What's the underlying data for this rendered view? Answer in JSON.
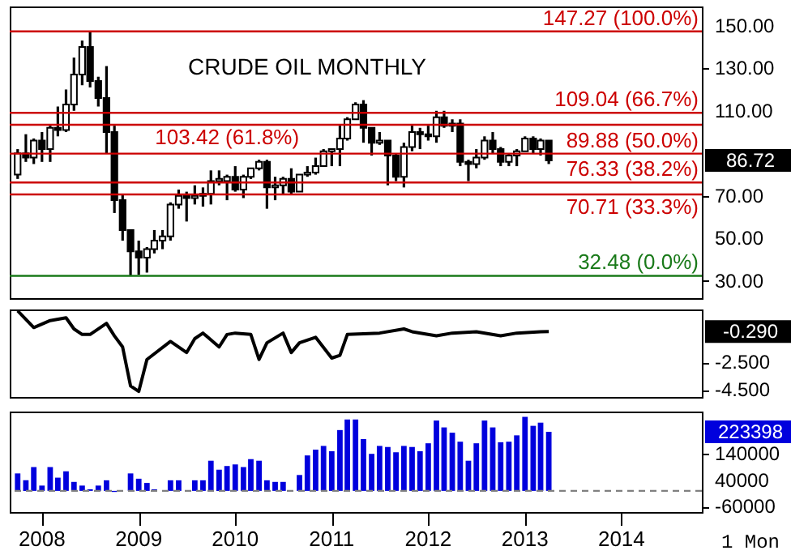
{
  "chart_data": [
    {
      "type": "candlestick",
      "title": "CRUDE OIL MONTHLY",
      "color": "#000000",
      "x": [
        "2007-10",
        "2007-11",
        "2007-12",
        "2008-01",
        "2008-02",
        "2008-03",
        "2008-04",
        "2008-05",
        "2008-06",
        "2008-07",
        "2008-08",
        "2008-09",
        "2008-10",
        "2008-11",
        "2008-12",
        "2009-01",
        "2009-02",
        "2009-03",
        "2009-04",
        "2009-05",
        "2009-06",
        "2009-07",
        "2009-08",
        "2009-09",
        "2009-10",
        "2009-11",
        "2009-12",
        "2010-01",
        "2010-02",
        "2010-03",
        "2010-04",
        "2010-05",
        "2010-06",
        "2010-07",
        "2010-08",
        "2010-09",
        "2010-10",
        "2010-11",
        "2010-12",
        "2011-01",
        "2011-02",
        "2011-03",
        "2011-04",
        "2011-05",
        "2011-06",
        "2011-07",
        "2011-08",
        "2011-09",
        "2011-10",
        "2011-11",
        "2011-12",
        "2012-01",
        "2012-02",
        "2012-03",
        "2012-04",
        "2012-05",
        "2012-06",
        "2012-07",
        "2012-08",
        "2012-09",
        "2012-10",
        "2012-11",
        "2012-12",
        "2013-01",
        "2013-02",
        "2013-03",
        "2013-04"
      ],
      "ohlc": [
        [
          80,
          92,
          78,
          90
        ],
        [
          90,
          99,
          86,
          88
        ],
        [
          88,
          97,
          85,
          96
        ],
        [
          96,
          100,
          86,
          92
        ],
        [
          92,
          103,
          86,
          102
        ],
        [
          102,
          112,
          98,
          101
        ],
        [
          101,
          120,
          100,
          113
        ],
        [
          113,
          135,
          110,
          127
        ],
        [
          127,
          143,
          122,
          140
        ],
        [
          140,
          147.27,
          121,
          124
        ],
        [
          124,
          126,
          112,
          116
        ],
        [
          116,
          131,
          90,
          100
        ],
        [
          100,
          103,
          62,
          68
        ],
        [
          68,
          71,
          49,
          54
        ],
        [
          54,
          54,
          32.48,
          44
        ],
        [
          44,
          49,
          33,
          41
        ],
        [
          41,
          46,
          34,
          45
        ],
        [
          45,
          54,
          43,
          49
        ],
        [
          49,
          54,
          45,
          51
        ],
        [
          51,
          67,
          49,
          66
        ],
        [
          66,
          73,
          64,
          70
        ],
        [
          70,
          72,
          58,
          69
        ],
        [
          69,
          75,
          66,
          70
        ],
        [
          70,
          74,
          65,
          71
        ],
        [
          71,
          82,
          66,
          77
        ],
        [
          77,
          82,
          75,
          78
        ],
        [
          77,
          80,
          68,
          79
        ],
        [
          79,
          84,
          72,
          73
        ],
        [
          73,
          80,
          69,
          79
        ],
        [
          79,
          83,
          78,
          83
        ],
        [
          83,
          87,
          82,
          86
        ],
        [
          86,
          87,
          64,
          74
        ],
        [
          74,
          79,
          68,
          75
        ],
        [
          75,
          79,
          71,
          78
        ],
        [
          78,
          83,
          71,
          72
        ],
        [
          72,
          80,
          72,
          80
        ],
        [
          80,
          84,
          79,
          81
        ],
        [
          81,
          88,
          80,
          84
        ],
        [
          84,
          92,
          84,
          91
        ],
        [
          91,
          92,
          84,
          92
        ],
        [
          92,
          103,
          84,
          97
        ],
        [
          97,
          107,
          96,
          106
        ],
        [
          106,
          114,
          106,
          113
        ],
        [
          113,
          115,
          95,
          102
        ],
        [
          102,
          102,
          89,
          95
        ],
        [
          95,
          100,
          94,
          96
        ],
        [
          96,
          96,
          75,
          89
        ],
        [
          89,
          90,
          77,
          79
        ],
        [
          79,
          95,
          74,
          93
        ],
        [
          93,
          103,
          91,
          100
        ],
        [
          100,
          102,
          92,
          99
        ],
        [
          99,
          103,
          96,
          98
        ],
        [
          98,
          110,
          95,
          107
        ],
        [
          107,
          110,
          102,
          103
        ],
        [
          103,
          106,
          100,
          104
        ],
        [
          104,
          106,
          84,
          86
        ],
        [
          86,
          87,
          77,
          85
        ],
        [
          85,
          92,
          83,
          88
        ],
        [
          88,
          98,
          87,
          96
        ],
        [
          96,
          100,
          90,
          92
        ],
        [
          92,
          93,
          84,
          86
        ],
        [
          86,
          90,
          84,
          89
        ],
        [
          89,
          92,
          84,
          91
        ],
        [
          91,
          98,
          91,
          97
        ],
        [
          97,
          98,
          90,
          92
        ],
        [
          92,
          97,
          89,
          96
        ],
        [
          96,
          96,
          85,
          86.72
        ]
      ],
      "xlim": [
        "2007-09",
        "2014-11"
      ],
      "xticks": [
        "2008",
        "2009",
        "2010",
        "2011",
        "2012",
        "2013",
        "2014"
      ],
      "ylim": [
        22,
        159
      ],
      "yticks": [
        {
          "value": 30,
          "label": "30.00"
        },
        {
          "value": 50,
          "label": "50.00"
        },
        {
          "value": 70,
          "label": "70.00"
        },
        {
          "value": 110,
          "label": "110.00"
        },
        {
          "value": 130,
          "label": "130.00"
        },
        {
          "value": 150,
          "label": "150.00"
        }
      ],
      "ref_lines": [
        {
          "axis": "y",
          "value": 147.27,
          "label": "147.27 (100.0%)",
          "color": "#cc0000"
        },
        {
          "axis": "y",
          "value": 109.04,
          "label": "109.04 (66.7%)",
          "color": "#cc0000"
        },
        {
          "axis": "y",
          "value": 103.42,
          "label": "103.42 (61.8%)",
          "color": "#cc0000"
        },
        {
          "axis": "y",
          "value": 89.88,
          "label": "89.88 (50.0%)",
          "color": "#cc0000"
        },
        {
          "axis": "y",
          "value": 76.33,
          "label": "76.33 (38.2%)",
          "color": "#cc0000"
        },
        {
          "axis": "y",
          "value": 70.71,
          "label": "70.71 (33.3%)",
          "color": "#cc0000"
        },
        {
          "axis": "y",
          "value": 32.48,
          "label": "32.48 (0.0%)",
          "color": "#1a7a1a"
        }
      ],
      "annotations": [
        "86.72"
      ],
      "tick_labels": "y",
      "grid": false
    },
    {
      "type": "line",
      "color": "#000000",
      "marker": "none",
      "line_style": "solid",
      "x": [
        "2007-10",
        "2007-12",
        "2008-02",
        "2008-04",
        "2008-05",
        "2008-06",
        "2008-07",
        "2008-09",
        "2008-10",
        "2008-11",
        "2008-12",
        "2009-01",
        "2009-02",
        "2009-05",
        "2009-07",
        "2009-08",
        "2009-09",
        "2009-11",
        "2009-12",
        "2010-01",
        "2010-03",
        "2010-04",
        "2010-05",
        "2010-07",
        "2010-08",
        "2010-09",
        "2010-11",
        "2011-01",
        "2011-02",
        "2011-03",
        "2011-07",
        "2011-10",
        "2011-11",
        "2012-02",
        "2012-04",
        "2012-07",
        "2012-10",
        "2012-12",
        "2013-03",
        "2013-04"
      ],
      "values": [
        1.2,
        0.0,
        0.5,
        0.7,
        -0.1,
        -0.5,
        -0.5,
        0.3,
        -0.6,
        -1.4,
        -4.2,
        -4.6,
        -2.3,
        -1.0,
        -1.8,
        -0.8,
        -0.4,
        -1.4,
        -0.5,
        -0.4,
        -0.5,
        -2.3,
        -1.1,
        -0.4,
        -1.8,
        -1.1,
        -0.7,
        -2.2,
        -2.0,
        -0.5,
        -0.4,
        -0.1,
        -0.3,
        -0.6,
        -0.4,
        -0.3,
        -0.6,
        -0.4,
        -0.3,
        -0.29
      ],
      "xlim": [
        "2007-09",
        "2014-11"
      ],
      "xticks": [
        "2008",
        "2009",
        "2010",
        "2011",
        "2012",
        "2013",
        "2014"
      ],
      "ylim": [
        -5.0,
        1.3
      ],
      "yticks": [
        {
          "value": -4.5,
          "label": "-4.500"
        },
        {
          "value": -2.5,
          "label": "-2.500"
        }
      ],
      "annotations": [
        "-0.290"
      ],
      "tick_labels": "y",
      "grid": false
    },
    {
      "type": "bar",
      "color": "#0000dd",
      "x": [
        "2007-10",
        "2007-11",
        "2007-12",
        "2008-01",
        "2008-02",
        "2008-03",
        "2008-04",
        "2008-05",
        "2008-06",
        "2008-07",
        "2008-08",
        "2008-09",
        "2008-10",
        "2008-11",
        "2008-12",
        "2009-01",
        "2009-02",
        "2009-03",
        "2009-04",
        "2009-05",
        "2009-06",
        "2009-07",
        "2009-08",
        "2009-09",
        "2009-10",
        "2009-11",
        "2009-12",
        "2010-01",
        "2010-02",
        "2010-03",
        "2010-04",
        "2010-05",
        "2010-06",
        "2010-07",
        "2010-08",
        "2010-09",
        "2010-10",
        "2010-11",
        "2010-12",
        "2011-01",
        "2011-02",
        "2011-03",
        "2011-04",
        "2011-05",
        "2011-06",
        "2011-07",
        "2011-08",
        "2011-09",
        "2011-10",
        "2011-11",
        "2011-12",
        "2012-01",
        "2012-02",
        "2012-03",
        "2012-04",
        "2012-05",
        "2012-06",
        "2012-07",
        "2012-08",
        "2012-09",
        "2012-10",
        "2012-11",
        "2012-12",
        "2013-01",
        "2013-02",
        "2013-03",
        "2013-04"
      ],
      "values": [
        66000,
        40000,
        90000,
        20000,
        90000,
        50000,
        74000,
        34000,
        20000,
        6000,
        20000,
        40000,
        -4000,
        null,
        66000,
        46000,
        30000,
        6000,
        null,
        40000,
        40000,
        null,
        40000,
        40000,
        114000,
        80000,
        94000,
        100000,
        90000,
        120000,
        114000,
        40000,
        34000,
        34000,
        null,
        60000,
        134000,
        156000,
        170000,
        150000,
        230000,
        270000,
        270000,
        196000,
        140000,
        170000,
        166000,
        146000,
        170000,
        166000,
        150000,
        180000,
        266000,
        240000,
        220000,
        186000,
        114000,
        180000,
        266000,
        240000,
        184000,
        186000,
        210000,
        280000,
        246000,
        258000,
        223398
      ],
      "xlim": [
        "2007-09",
        "2014-11"
      ],
      "xticks": [
        "2008",
        "2009",
        "2010",
        "2011",
        "2012",
        "2013",
        "2014"
      ],
      "ylim": [
        -80000,
        300000
      ],
      "yticks": [
        -60000,
        40000,
        140000
      ],
      "ref_lines": [
        {
          "axis": "y",
          "value": 0,
          "color": "#808080",
          "line_style": "dashed"
        }
      ],
      "annotations": [
        "223398",
        "1 Mon"
      ],
      "grid": false
    }
  ]
}
